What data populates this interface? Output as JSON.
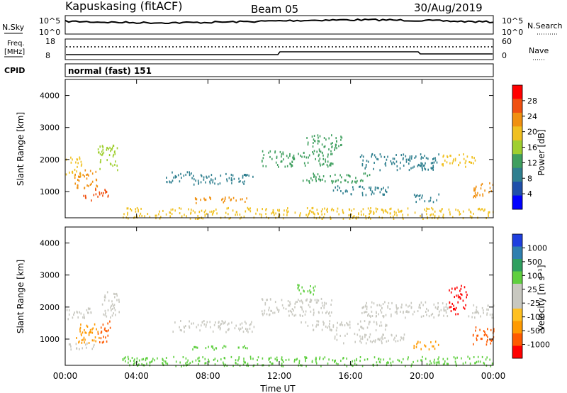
{
  "header": {
    "station": "Kapuskasing (fitACF)",
    "beam": "Beam 05",
    "date": "30/Aug/2019"
  },
  "noise_panel": {
    "left_label": "N.Sky",
    "left_ticks": [
      "10^5",
      "10^0"
    ],
    "right_label": "N.Search",
    "right_ticks": [
      "10^5",
      "10^0"
    ]
  },
  "freq_panel": {
    "left_label_1": "Freq.",
    "left_label_2": "[MHz]",
    "left_ticks": [
      "18",
      "8"
    ],
    "right_label": "Nave",
    "right_ticks": [
      "60",
      "0"
    ]
  },
  "cpid": {
    "label": "CPID",
    "value": "normal (fast) 151"
  },
  "colors": {
    "power_scale": [
      "#0000ff",
      "#1f4faa",
      "#2f7f8f",
      "#3f9f5f",
      "#9fcf2f",
      "#f0c020",
      "#f09010",
      "#f05010",
      "#ff0000"
    ],
    "velocity_scale": [
      "#ff0000",
      "#ff5a00",
      "#ff9a00",
      "#ffc020",
      "#c8c8c0",
      "#c8c8c0",
      "#5fcf3f",
      "#2f9f5f",
      "#2f7faf",
      "#1f3fdf"
    ]
  },
  "chart_data": [
    {
      "type": "heatmap",
      "name": "power",
      "ylabel": "Slant Range [km]",
      "ylim": [
        180,
        4500
      ],
      "yticks": [
        "4000",
        "3000",
        "2000",
        "1000"
      ],
      "xlim": [
        0,
        24
      ],
      "colorbar": {
        "label": "Power [dB]",
        "ticks": [
          "28",
          "24",
          "20",
          "16",
          "12",
          "8",
          "4"
        ],
        "range": [
          0,
          32
        ]
      },
      "regions": [
        {
          "t0": 0.0,
          "t1": 0.9,
          "r0": 1500,
          "r1": 2100,
          "v": 20
        },
        {
          "t0": 0.5,
          "t1": 1.8,
          "r0": 1100,
          "r1": 1700,
          "v": 22
        },
        {
          "t0": 1.0,
          "t1": 2.4,
          "r0": 750,
          "r1": 1100,
          "v": 26
        },
        {
          "t0": 1.8,
          "t1": 3.0,
          "r0": 1700,
          "r1": 2500,
          "v": 16
        },
        {
          "t0": 5.6,
          "t1": 7.0,
          "r0": 1300,
          "r1": 1650,
          "v": 8
        },
        {
          "t0": 7.0,
          "t1": 10.6,
          "r0": 1250,
          "r1": 1600,
          "v": 9
        },
        {
          "t0": 7.2,
          "t1": 10.2,
          "r0": 650,
          "r1": 850,
          "v": 24
        },
        {
          "t0": 3.2,
          "t1": 24.0,
          "r0": 180,
          "r1": 520,
          "v": 18
        },
        {
          "t0": 11.0,
          "t1": 15.0,
          "r0": 1800,
          "r1": 2300,
          "v": 14
        },
        {
          "t0": 13.2,
          "t1": 17.2,
          "r0": 1300,
          "r1": 1600,
          "v": 12
        },
        {
          "t0": 13.5,
          "t1": 15.5,
          "r0": 2300,
          "r1": 2800,
          "v": 13
        },
        {
          "t0": 15.0,
          "t1": 18.2,
          "r0": 900,
          "r1": 1200,
          "v": 8
        },
        {
          "t0": 16.5,
          "t1": 21.0,
          "r0": 1700,
          "r1": 2200,
          "v": 10
        },
        {
          "t0": 21.0,
          "t1": 23.0,
          "r0": 1800,
          "r1": 2200,
          "v": 18
        },
        {
          "t0": 22.8,
          "t1": 24.0,
          "r0": 850,
          "r1": 1300,
          "v": 24
        },
        {
          "t0": 19.5,
          "t1": 21.0,
          "r0": 700,
          "r1": 950,
          "v": 8
        }
      ]
    },
    {
      "type": "heatmap",
      "name": "velocity",
      "ylabel": "Slant Range [km]",
      "ylim": [
        180,
        4500
      ],
      "yticks": [
        "4000",
        "3000",
        "2000",
        "1000"
      ],
      "xlim": [
        0,
        24
      ],
      "xticks": [
        "00:00",
        "04:00",
        "08:00",
        "12:00",
        "16:00",
        "20:00",
        "00:00"
      ],
      "xlabel": "Time UT",
      "colorbar": {
        "label": "Velocity [m s⁻¹]",
        "ticks": [
          "1000",
          "500",
          "100",
          "25",
          "-25",
          "-100",
          "-500",
          "-1000"
        ]
      },
      "regions": [
        {
          "t0": 0.0,
          "t1": 1.5,
          "r0": 1650,
          "r1": 2000,
          "v": "-25"
        },
        {
          "t0": 0.0,
          "t1": 1.6,
          "r0": 700,
          "r1": 900,
          "v": "-25"
        },
        {
          "t0": 0.6,
          "t1": 2.0,
          "r0": 900,
          "r1": 1500,
          "v": "-100"
        },
        {
          "t0": 1.8,
          "t1": 2.5,
          "r0": 900,
          "r1": 1600,
          "v": "-500"
        },
        {
          "t0": 2.0,
          "t1": 3.0,
          "r0": 1700,
          "r1": 2500,
          "v": "-25"
        },
        {
          "t0": 6.0,
          "t1": 10.6,
          "r0": 1250,
          "r1": 1600,
          "v": "-25"
        },
        {
          "t0": 7.0,
          "t1": 10.2,
          "r0": 700,
          "r1": 850,
          "v": "100"
        },
        {
          "t0": 3.2,
          "t1": 24.0,
          "r0": 180,
          "r1": 480,
          "v": "100"
        },
        {
          "t0": 11.0,
          "t1": 15.0,
          "r0": 1750,
          "r1": 2300,
          "v": "-25"
        },
        {
          "t0": 13.2,
          "t1": 18.0,
          "r0": 1300,
          "r1": 1600,
          "v": "-25"
        },
        {
          "t0": 15.0,
          "t1": 19.0,
          "r0": 900,
          "r1": 1200,
          "v": "-25"
        },
        {
          "t0": 16.5,
          "t1": 21.5,
          "r0": 1700,
          "r1": 2200,
          "v": "-25"
        },
        {
          "t0": 19.5,
          "t1": 21.0,
          "r0": 700,
          "r1": 950,
          "v": "-100"
        },
        {
          "t0": 21.5,
          "t1": 22.5,
          "r0": 1800,
          "r1": 2700,
          "v": "-1000"
        },
        {
          "t0": 22.5,
          "t1": 24.0,
          "r0": 1700,
          "r1": 2100,
          "v": "-25"
        },
        {
          "t0": 22.7,
          "t1": 24.0,
          "r0": 850,
          "r1": 1400,
          "v": "-500"
        },
        {
          "t0": 13.0,
          "t1": 14.0,
          "r0": 2400,
          "r1": 2800,
          "v": "100"
        }
      ]
    }
  ]
}
